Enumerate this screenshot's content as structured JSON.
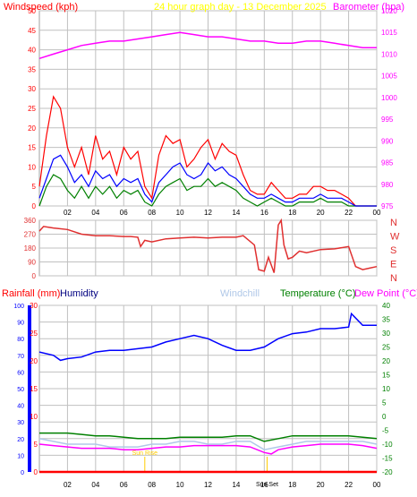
{
  "header": {
    "left_title": "Windspeed (kph)",
    "center_title": "24 hour graph day - 13 December 2025",
    "right_title": "Barometer (hpa)"
  },
  "direction_labels": [
    "N",
    "W",
    "S",
    "E",
    "N"
  ],
  "lower_header": {
    "rainfall": "Rainfall (mm)",
    "humidity": "Humidity",
    "windchill": "Windchill",
    "temperature": "Temperature (°C)",
    "dewpoint": "Dew Point (°C)"
  },
  "annotations": {
    "sunrise": "Sun Rise",
    "sunset": "Sun Set"
  },
  "colors": {
    "windspeed": "#ff0000",
    "wind_avg": "#0000ff",
    "wind_green": "#008000",
    "barometer": "#ff00ff",
    "title_center": "#ffff00",
    "direction": "#e03030",
    "rain_axis": "#0000ff",
    "rain_bar": "#ff0000",
    "humidity": "#0000ff",
    "windchill": "#b0c8e8",
    "temperature": "#008000",
    "dewpoint": "#ff00ff",
    "sun_marker": "#ffcc00",
    "grid": "#c0c0c0"
  },
  "chart_data": [
    {
      "id": "wind",
      "type": "line",
      "x_tick_labels": [
        "02",
        "04",
        "06",
        "08",
        "10",
        "12",
        "14",
        "16",
        "18",
        "20",
        "22",
        "00"
      ],
      "xlim": [
        0,
        24
      ],
      "left_axis": {
        "label": "Windspeed (kph)",
        "ylim": [
          0,
          50
        ],
        "ticks": [
          0,
          5,
          10,
          15,
          20,
          25,
          30,
          35,
          40,
          45,
          50
        ]
      },
      "right_axis": {
        "label": "Barometer (hpa)",
        "ylim": [
          975,
          1020
        ],
        "ticks": [
          975,
          980,
          985,
          990,
          995,
          1000,
          1005,
          1010,
          1015,
          1020
        ]
      },
      "series": [
        {
          "name": "Windspeed",
          "axis": "left",
          "color": "#ff0000",
          "x": [
            0,
            0.5,
            1,
            1.5,
            2,
            2.5,
            3,
            3.5,
            4,
            4.5,
            5,
            5.5,
            6,
            6.5,
            7,
            7.5,
            8,
            8.5,
            9,
            9.5,
            10,
            10.5,
            11,
            11.5,
            12,
            12.5,
            13,
            13.5,
            14,
            14.5,
            15,
            15.5,
            16,
            16.5,
            17,
            17.5,
            18,
            18.5,
            19,
            19.5,
            20,
            20.5,
            21,
            21.5,
            22,
            22.5,
            23,
            24
          ],
          "y": [
            5,
            18,
            28,
            25,
            15,
            10,
            15,
            8,
            18,
            12,
            14,
            8,
            15,
            12,
            14,
            5,
            2,
            13,
            18,
            16,
            17,
            10,
            12,
            15,
            17,
            12,
            16,
            14,
            13,
            8,
            4,
            3,
            3,
            6,
            4,
            2,
            2,
            3,
            3,
            5,
            5,
            4,
            4,
            3,
            2,
            0,
            0,
            0
          ]
        },
        {
          "name": "Wind average",
          "axis": "left",
          "color": "#0000ff",
          "x": [
            0,
            0.5,
            1,
            1.5,
            2,
            2.5,
            3,
            3.5,
            4,
            4.5,
            5,
            5.5,
            6,
            6.5,
            7,
            7.5,
            8,
            8.5,
            9,
            9.5,
            10,
            10.5,
            11,
            11.5,
            12,
            12.5,
            13,
            13.5,
            14,
            14.5,
            15,
            15.5,
            16,
            16.5,
            17,
            17.5,
            18,
            18.5,
            19,
            19.5,
            20,
            20.5,
            21,
            21.5,
            22,
            22.5,
            23,
            24
          ],
          "y": [
            2,
            7,
            12,
            13,
            10,
            6,
            8,
            5,
            9,
            7,
            8,
            5,
            7,
            6,
            7,
            3,
            1,
            6,
            8,
            10,
            11,
            8,
            7,
            8,
            11,
            9,
            10,
            8,
            7,
            5,
            3,
            2,
            2,
            3,
            2,
            1,
            1,
            2,
            2,
            2,
            3,
            2,
            2,
            2,
            1,
            0,
            0,
            0
          ]
        },
        {
          "name": "Wind lull",
          "axis": "left",
          "color": "#008000",
          "x": [
            0,
            0.5,
            1,
            1.5,
            2,
            2.5,
            3,
            3.5,
            4,
            4.5,
            5,
            5.5,
            6,
            6.5,
            7,
            7.5,
            8,
            8.5,
            9,
            9.5,
            10,
            10.5,
            11,
            11.5,
            12,
            12.5,
            13,
            13.5,
            14,
            14.5,
            15,
            15.5,
            16,
            16.5,
            17,
            17.5,
            18,
            18.5,
            19,
            19.5,
            20,
            20.5,
            21,
            21.5,
            22,
            22.5,
            23,
            24
          ],
          "y": [
            0,
            5,
            8,
            7,
            4,
            2,
            5,
            2,
            5,
            3,
            5,
            2,
            4,
            3,
            4,
            1,
            0,
            3,
            5,
            6,
            7,
            4,
            5,
            5,
            7,
            5,
            6,
            5,
            4,
            2,
            1,
            0,
            1,
            2,
            1,
            0,
            0,
            1,
            1,
            1,
            2,
            1,
            1,
            1,
            0,
            0,
            0,
            0
          ]
        },
        {
          "name": "Barometer",
          "axis": "right",
          "color": "#ff00ff",
          "x": [
            0,
            1,
            2,
            3,
            4,
            5,
            6,
            7,
            8,
            9,
            10,
            11,
            12,
            13,
            14,
            15,
            16,
            17,
            18,
            19,
            20,
            21,
            22,
            23,
            24
          ],
          "y": [
            1009,
            1010,
            1011,
            1012,
            1012.5,
            1013,
            1013,
            1013.5,
            1014,
            1014.5,
            1015,
            1014.5,
            1014,
            1014,
            1013.5,
            1013,
            1013,
            1012.5,
            1012.5,
            1013,
            1013,
            1012.5,
            1012,
            1011.5,
            1011.5
          ]
        }
      ]
    },
    {
      "id": "direction",
      "type": "line",
      "xlim": [
        0,
        24
      ],
      "ylim": [
        0,
        360
      ],
      "ticks": [
        0,
        90,
        180,
        270,
        360
      ],
      "series": [
        {
          "name": "Wind direction",
          "color": "#e03030",
          "x": [
            0,
            0.3,
            1,
            2,
            3,
            4,
            5,
            6,
            6.5,
            7,
            7.2,
            7.5,
            8,
            9,
            10,
            11,
            12,
            13,
            14,
            14.5,
            15.3,
            15.6,
            16,
            16.3,
            16.7,
            17,
            17.2,
            17.4,
            17.7,
            18,
            18.5,
            19,
            20,
            21,
            22,
            22.5,
            23,
            23.5,
            24
          ],
          "y": [
            290,
            320,
            310,
            300,
            270,
            260,
            260,
            255,
            255,
            250,
            190,
            230,
            220,
            240,
            245,
            250,
            245,
            250,
            250,
            260,
            200,
            40,
            30,
            120,
            20,
            330,
            360,
            200,
            110,
            120,
            160,
            150,
            170,
            175,
            190,
            60,
            40,
            50,
            60
          ]
        }
      ]
    },
    {
      "id": "weather",
      "type": "line",
      "x_tick_labels": [
        "02",
        "04",
        "06",
        "08",
        "10",
        "12",
        "14",
        "16",
        "18",
        "20",
        "22",
        "00"
      ],
      "xlim": [
        0,
        24
      ],
      "rain_axis": {
        "label": "Rainfall (mm)",
        "ylim": [
          0,
          30
        ],
        "ticks": [
          0,
          5,
          10,
          15,
          20,
          25,
          30
        ]
      },
      "humidity_axis": {
        "label": "Humidity",
        "ylim": [
          0,
          100
        ],
        "ticks": [
          0,
          10,
          20,
          30,
          40,
          50,
          60,
          70,
          80,
          90,
          100
        ]
      },
      "temperature_axis": {
        "label": "Temperature (°C)",
        "ylim": [
          -20,
          40
        ],
        "ticks": [
          -20,
          -15,
          -10,
          -5,
          0,
          5,
          10,
          15,
          20,
          25,
          30,
          35,
          40
        ]
      },
      "sunrise_hour": 7.5,
      "sunset_hour": 16.2,
      "series": [
        {
          "name": "Humidity",
          "axis": "humidity",
          "color": "#0000ff",
          "x": [
            0,
            1,
            1.5,
            2,
            3,
            4,
            5,
            6,
            7,
            8,
            9,
            10,
            11,
            12,
            13,
            14,
            15,
            16,
            17,
            18,
            19,
            20,
            21,
            22,
            22.2,
            23,
            24
          ],
          "y": [
            72,
            70,
            67,
            68,
            69,
            72,
            73,
            73,
            74,
            75,
            78,
            80,
            82,
            80,
            76,
            73,
            73,
            75,
            80,
            83,
            84,
            86,
            86,
            87,
            95,
            88,
            88
          ]
        },
        {
          "name": "Windchill",
          "axis": "temperature",
          "color": "#b0c8e8",
          "x": [
            0,
            1,
            2,
            3,
            4,
            5,
            6,
            7,
            8,
            9,
            10,
            11,
            12,
            13,
            14,
            15,
            16,
            17,
            18,
            19,
            20,
            21,
            22,
            23,
            24
          ],
          "y": [
            -8,
            -9,
            -10,
            -10,
            -10,
            -11,
            -11,
            -11,
            -10,
            -10,
            -9,
            -9,
            -10,
            -10,
            -9,
            -9,
            -12,
            -11,
            -10,
            -9,
            -9,
            -9,
            -9,
            -9,
            -10
          ]
        },
        {
          "name": "Temperature",
          "axis": "temperature",
          "color": "#008000",
          "x": [
            0,
            1,
            2,
            3,
            4,
            5,
            6,
            7,
            8,
            9,
            10,
            11,
            12,
            13,
            14,
            15,
            16,
            17,
            18,
            19,
            20,
            21,
            22,
            23,
            24
          ],
          "y": [
            -6,
            -6,
            -6,
            -6.5,
            -7,
            -7,
            -7.5,
            -8,
            -8,
            -8,
            -7.5,
            -7.5,
            -7.5,
            -7.5,
            -7,
            -7,
            -9,
            -8,
            -7,
            -7,
            -7,
            -7,
            -7,
            -7.5,
            -8
          ]
        },
        {
          "name": "Dew Point",
          "axis": "temperature",
          "color": "#ff00ff",
          "x": [
            0,
            1,
            2,
            3,
            4,
            5,
            6,
            7,
            8,
            9,
            10,
            11,
            12,
            13,
            14,
            15,
            16,
            16.5,
            17,
            18,
            19,
            20,
            21,
            22,
            23,
            24
          ],
          "y": [
            -10,
            -10.5,
            -11,
            -11.5,
            -11.5,
            -11.5,
            -12,
            -12,
            -11.5,
            -11,
            -11,
            -10.5,
            -10.5,
            -10.5,
            -10.5,
            -11,
            -13,
            -13.5,
            -12,
            -11,
            -10.5,
            -10,
            -10,
            -10,
            -10.5,
            -11.5
          ]
        },
        {
          "name": "Rainfall",
          "axis": "rain",
          "color": "#ff0000",
          "x": [
            0,
            24
          ],
          "y": [
            0,
            0
          ]
        }
      ]
    }
  ]
}
